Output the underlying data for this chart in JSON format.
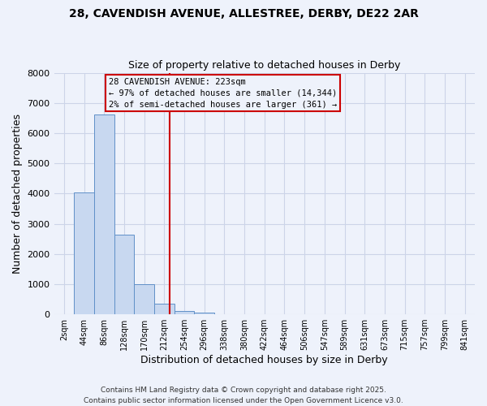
{
  "title1": "28, CAVENDISH AVENUE, ALLESTREE, DERBY, DE22 2AR",
  "title2": "Size of property relative to detached houses in Derby",
  "xlabel": "Distribution of detached houses by size in Derby",
  "ylabel": "Number of detached properties",
  "bin_labels": [
    "2sqm",
    "44sqm",
    "86sqm",
    "128sqm",
    "170sqm",
    "212sqm",
    "254sqm",
    "296sqm",
    "338sqm",
    "380sqm",
    "422sqm",
    "464sqm",
    "506sqm",
    "547sqm",
    "589sqm",
    "631sqm",
    "673sqm",
    "715sqm",
    "757sqm",
    "799sqm",
    "841sqm"
  ],
  "bar_heights": [
    0,
    4030,
    6630,
    2650,
    1000,
    340,
    100,
    50,
    0,
    0,
    0,
    0,
    0,
    0,
    0,
    0,
    0,
    0,
    0,
    0,
    0
  ],
  "bar_color": "#c8d8f0",
  "bar_edge_color": "#6090c8",
  "vline_x_index": 5.26,
  "vline_color": "#cc0000",
  "ylim": [
    0,
    8000
  ],
  "yticks": [
    0,
    1000,
    2000,
    3000,
    4000,
    5000,
    6000,
    7000,
    8000
  ],
  "annotation_title": "28 CAVENDISH AVENUE: 223sqm",
  "annotation_line1": "← 97% of detached houses are smaller (14,344)",
  "annotation_line2": "2% of semi-detached houses are larger (361) →",
  "footer1": "Contains HM Land Registry data © Crown copyright and database right 2025.",
  "footer2": "Contains public sector information licensed under the Open Government Licence v3.0.",
  "bg_color": "#eef2fb",
  "grid_color": "#ccd4e8"
}
